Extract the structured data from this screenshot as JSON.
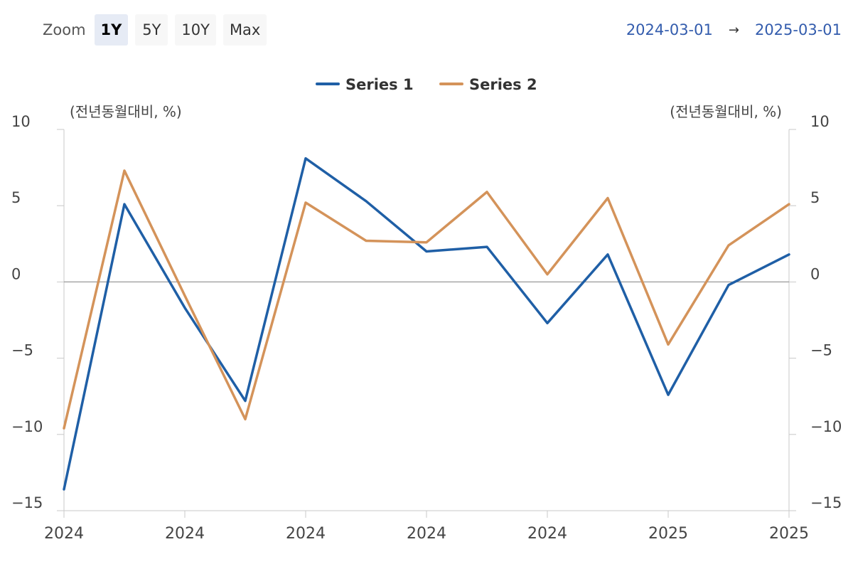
{
  "toolbar": {
    "zoom_label": "Zoom",
    "buttons": [
      "1Y",
      "5Y",
      "10Y",
      "Max"
    ],
    "active": "1Y"
  },
  "range": {
    "from": "2024-03-01",
    "arrow": "→",
    "to": "2025-03-01"
  },
  "chart_data": {
    "type": "line",
    "title": "",
    "xlabel": "",
    "ylabel_left": "(전년동월대비, %)",
    "ylabel_right": "(전년동월대비, %)",
    "ylim": [
      -15,
      10
    ],
    "yticks": [
      10,
      5,
      0,
      -5,
      -10,
      -15
    ],
    "ytick_labels": [
      "10",
      "5",
      "0",
      "−5",
      "−10",
      "−15"
    ],
    "x_tick_labels": [
      "2024",
      "2024",
      "2024",
      "2024",
      "2024",
      "2025",
      "2025"
    ],
    "x": [
      "2024-03",
      "2024-04",
      "2024-05",
      "2024-06",
      "2024-07",
      "2024-08",
      "2024-09",
      "2024-10",
      "2024-11",
      "2024-12",
      "2025-01",
      "2025-02",
      "2025-03"
    ],
    "series": [
      {
        "name": "Series 1",
        "color": "#1f5fa6",
        "values": [
          -13.6,
          5.1,
          -1.7,
          -7.8,
          8.1,
          5.3,
          2.0,
          2.3,
          -2.7,
          1.8,
          -7.4,
          -0.2,
          1.8
        ]
      },
      {
        "name": "Series 2",
        "color": "#d4935a",
        "values": [
          -9.6,
          7.3,
          -0.9,
          -9.0,
          5.2,
          2.7,
          2.6,
          5.9,
          0.5,
          5.5,
          -4.1,
          2.4,
          5.1
        ]
      }
    ],
    "grid": false,
    "zero_line": true,
    "legend_position": "top-center"
  }
}
